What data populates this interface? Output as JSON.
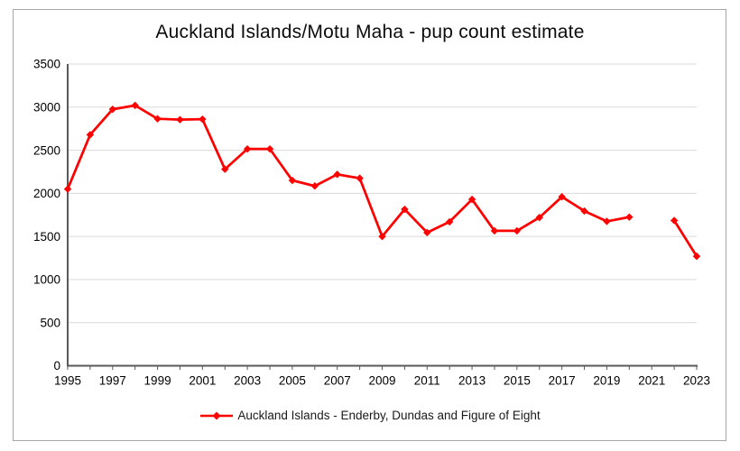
{
  "title": "Auckland Islands/Motu Maha - pup count estimate",
  "legend": {
    "label": "Auckland Islands - Enderby, Dundas and Figure of Eight"
  },
  "colors": {
    "line": "#FF0000",
    "axis": "#595959",
    "gridline": "#D9D9D9",
    "text": "#000000",
    "frame_border": "#A6A6A6",
    "background": "#FFFFFF"
  },
  "chart_data": {
    "type": "line",
    "title": "Auckland Islands/Motu Maha - pup count estimate",
    "xlabel": "",
    "ylabel": "",
    "x": [
      1995,
      1996,
      1997,
      1998,
      1999,
      2000,
      2001,
      2002,
      2003,
      2004,
      2005,
      2006,
      2007,
      2008,
      2009,
      2010,
      2011,
      2012,
      2013,
      2014,
      2015,
      2016,
      2017,
      2018,
      2019,
      2020,
      2021,
      2022,
      2023
    ],
    "series": [
      {
        "name": "Auckland Islands - Enderby, Dundas and Figure of Eight",
        "color": "#FF0000",
        "marker": "diamond",
        "values": [
          2050,
          2680,
          2975,
          3020,
          2865,
          2855,
          2860,
          2280,
          2515,
          2515,
          2150,
          2085,
          2220,
          2175,
          1500,
          1815,
          1545,
          1670,
          1930,
          1565,
          1565,
          1720,
          1960,
          1795,
          1675,
          1725,
          null,
          1685,
          1270
        ]
      }
    ],
    "ylim": [
      0,
      3500
    ],
    "y_ticks": [
      0,
      500,
      1000,
      1500,
      2000,
      2500,
      3000,
      3500
    ],
    "x_tick_labels": [
      "1995",
      "1997",
      "1999",
      "2001",
      "2003",
      "2005",
      "2007",
      "2009",
      "2011",
      "2013",
      "2015",
      "2017",
      "2019",
      "2021",
      "2023"
    ],
    "grid": true,
    "legend_position": "bottom",
    "notes": "no data point for 2021 (gap in line)"
  }
}
